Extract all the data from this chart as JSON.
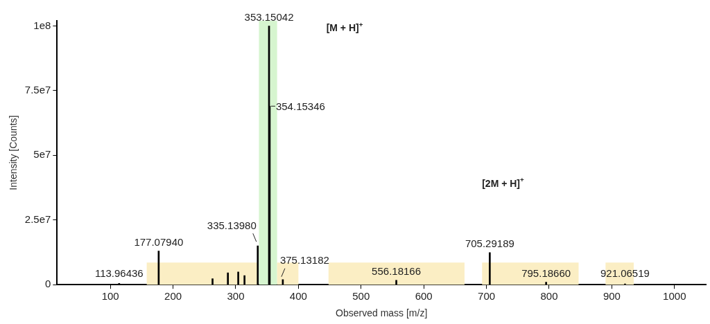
{
  "chart_data": {
    "type": "bar",
    "xlabel": "Observed mass [m/z]",
    "ylabel": "Intensity [Counts]",
    "x": [
      113.96436,
      177.0794,
      263,
      287.5,
      304,
      314,
      335.1398,
      353.15042,
      354.15346,
      375.13182,
      556.18166,
      705.29189,
      795.1866,
      921.06519
    ],
    "values": [
      500000,
      13000000,
      2300000,
      4600000,
      4900000,
      3500000,
      15000000,
      100000000,
      69000000,
      2000000,
      1700000,
      12400000,
      1000000,
      300000
    ],
    "color": "#000000",
    "xlim": [
      15,
      1050
    ],
    "xticks": [
      100,
      200,
      300,
      400,
      500,
      600,
      700,
      800,
      900,
      1000
    ],
    "ylim": [
      0,
      102000000
    ],
    "yticks": [
      {
        "value": 0,
        "label": "0"
      },
      {
        "value": 25000000,
        "label": "2.5e7"
      },
      {
        "value": 50000000,
        "label": "5e7"
      },
      {
        "value": 75000000,
        "label": "7.5e7"
      },
      {
        "value": 100000000,
        "label": "1e8"
      }
    ],
    "bands": [
      {
        "axis": "x",
        "from": 158,
        "to": 335,
        "color": "#fbeec4"
      },
      {
        "axis": "x",
        "from": 337,
        "to": 366,
        "color": "#d6f5cf"
      },
      {
        "axis": "x",
        "from": 366,
        "to": 400,
        "color": "#fbeec4"
      },
      {
        "axis": "x",
        "from": 448,
        "to": 665,
        "color": "#fbeec4"
      },
      {
        "axis": "x",
        "from": 693,
        "to": 847,
        "color": "#fbeec4"
      },
      {
        "axis": "x",
        "from": 890,
        "to": 935,
        "color": "#fbeec4"
      }
    ],
    "annotations": [
      {
        "text": "113.96436",
        "x": 113.96436,
        "y": 500000
      },
      {
        "text": "177.07940",
        "x": 177.0794,
        "y": 13000000
      },
      {
        "text": "335.13980",
        "x": 335.1398,
        "y": 15000000
      },
      {
        "text": "353.15042",
        "x": 353.15042,
        "y": 100000000
      },
      {
        "text": "354.15346",
        "x": 354.15346,
        "y": 69000000
      },
      {
        "text": "375.13182",
        "x": 375.13182,
        "y": 2000000
      },
      {
        "text": "556.18166",
        "x": 556.18166,
        "y": 1700000
      },
      {
        "text": "705.29189",
        "x": 705.29189,
        "y": 12400000
      },
      {
        "text": "795.18660",
        "x": 795.1866,
        "y": 1000000
      },
      {
        "text": "921.06519",
        "x": 921.06519,
        "y": 300000
      },
      "[M + H]$^{+}$",
      "[2M + H]$^{+}$"
    ],
    "grid": false,
    "legend": false
  }
}
